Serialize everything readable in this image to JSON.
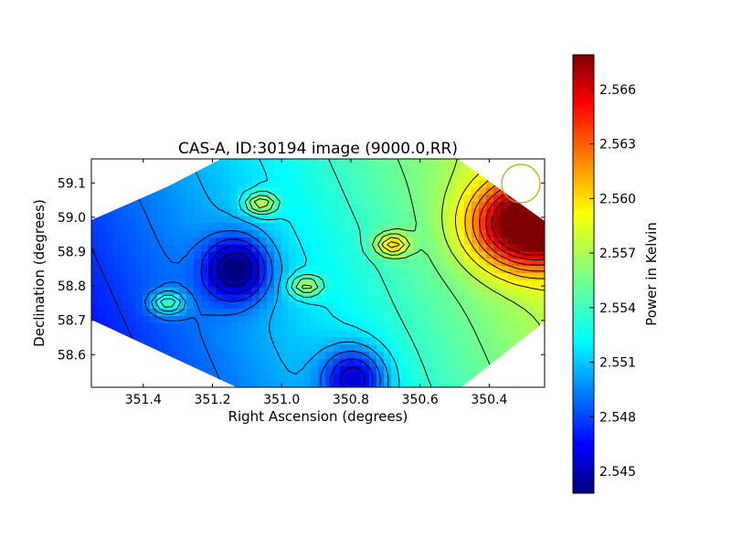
{
  "chart_data": {
    "type": "heatmap",
    "title": "CAS-A, ID:30194 image (9000.0,RR)",
    "xlabel": "Right Ascension (degrees)",
    "ylabel": "Declination (degrees)",
    "xlim": [
      351.55,
      350.24
    ],
    "ylim": [
      58.505,
      59.17
    ],
    "x_inverted": true,
    "x_ticks": [
      "351.4",
      "351.2",
      "351.0",
      "350.8",
      "350.6",
      "350.4"
    ],
    "y_ticks": [
      "58.6",
      "58.7",
      "58.8",
      "58.9",
      "59.0",
      "59.1"
    ],
    "colorbar": {
      "label": "Power in Kelvin",
      "colormap": "jet",
      "range": [
        2.5438,
        2.5679
      ],
      "ticks": [
        "2.545",
        "2.548",
        "2.551",
        "2.554",
        "2.557",
        "2.560",
        "2.563",
        "2.566"
      ]
    },
    "contour_color": "#000000",
    "beam_marker": {
      "shape": "circle",
      "color": "#bfa600",
      "ra": 350.29,
      "dec": 59.1
    },
    "features": [
      {
        "kind": "maximum",
        "ra": 350.28,
        "dec": 58.98,
        "value": 2.5675
      },
      {
        "kind": "minimum",
        "ra": 351.13,
        "dec": 58.85,
        "value": 2.5445
      },
      {
        "kind": "minimum",
        "ra": 350.79,
        "dec": 58.53,
        "value": 2.5455
      },
      {
        "kind": "local-peak",
        "ra": 351.33,
        "dec": 58.75,
        "value": 2.559
      },
      {
        "kind": "local-peak",
        "ra": 351.06,
        "dec": 59.04,
        "value": 2.559
      },
      {
        "kind": "local-peak",
        "ra": 350.93,
        "dec": 58.8,
        "value": 2.558
      },
      {
        "kind": "local-peak",
        "ra": 350.68,
        "dec": 58.92,
        "value": 2.559
      }
    ]
  }
}
